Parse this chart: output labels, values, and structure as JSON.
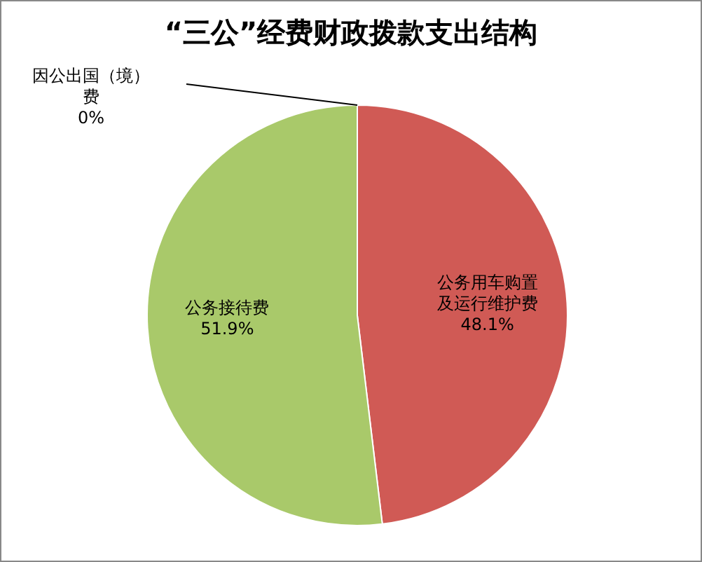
{
  "chart_data": {
    "type": "pie",
    "title": "“三公”经费财政拨款支出结构",
    "categories": [
      "因公出国（境）费",
      "公务用车购置及运行维护费",
      "公务接待费"
    ],
    "values": [
      0,
      48.1,
      51.9
    ],
    "colors": [
      "#4f81bd",
      "#d05a55",
      "#a9c96a"
    ],
    "value_labels": [
      "0%",
      "48.1%",
      "51.9%"
    ]
  }
}
